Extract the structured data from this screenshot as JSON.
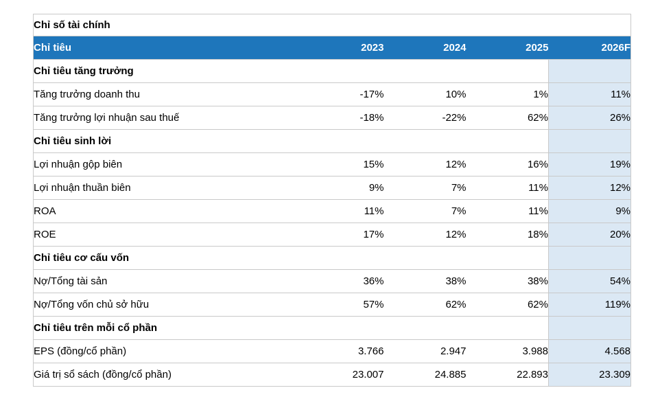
{
  "table": {
    "title": "Chỉ số tài chính",
    "header": {
      "label": "Chỉ tiêu",
      "columns": [
        "2023",
        "2024",
        "2025",
        "2026F"
      ]
    },
    "rows": [
      {
        "type": "section",
        "label": "Chỉ tiêu tăng trưởng"
      },
      {
        "type": "data",
        "label": "Tăng trưởng doanh thu",
        "values": [
          "-17%",
          "10%",
          "1%",
          "11%"
        ]
      },
      {
        "type": "data",
        "label": "Tăng trưởng lợi nhuận sau thuế",
        "values": [
          "-18%",
          "-22%",
          "62%",
          "26%"
        ]
      },
      {
        "type": "section",
        "label": "Chỉ tiêu sinh lời"
      },
      {
        "type": "data",
        "label": "Lợi nhuận gộp biên",
        "values": [
          "15%",
          "12%",
          "16%",
          "19%"
        ]
      },
      {
        "type": "data",
        "label": "Lợi nhuận thuần biên",
        "values": [
          "9%",
          "7%",
          "11%",
          "12%"
        ]
      },
      {
        "type": "data",
        "label": "ROA",
        "values": [
          "11%",
          "7%",
          "11%",
          "9%"
        ]
      },
      {
        "type": "data",
        "label": "ROE",
        "values": [
          "17%",
          "12%",
          "18%",
          "20%"
        ]
      },
      {
        "type": "section",
        "label": "Chỉ tiêu cơ cấu vốn"
      },
      {
        "type": "data",
        "label": "Nợ/Tổng tài sản",
        "values": [
          "36%",
          "38%",
          "38%",
          "54%"
        ]
      },
      {
        "type": "data",
        "label": "Nợ/Tổng vốn chủ sở hữu",
        "values": [
          "57%",
          "62%",
          "62%",
          "119%"
        ]
      },
      {
        "type": "section",
        "label": "Chỉ tiêu trên mỗi cổ phần"
      },
      {
        "type": "data",
        "label": "EPS (đồng/cổ phần)",
        "values": [
          "3.766",
          "2.947",
          "3.988",
          "4.568"
        ]
      },
      {
        "type": "data",
        "label": "Giá trị sổ sách (đồng/cổ phần)",
        "values": [
          "23.007",
          "24.885",
          "22.893",
          "23.309"
        ]
      }
    ],
    "colors": {
      "header_bg": "#1e76bb",
      "header_text": "#ffffff",
      "forecast_column_bg": "#dbe8f4",
      "border": "#c9c9c9",
      "text": "#000000"
    }
  }
}
